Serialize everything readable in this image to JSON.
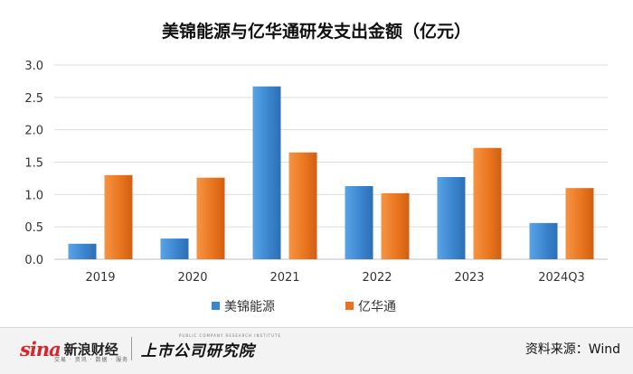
{
  "chart_data": {
    "type": "bar",
    "title": "美锦能源与亿华通研发支出金额（亿元）",
    "categories": [
      "2019",
      "2020",
      "2021",
      "2022",
      "2023",
      "2024Q3"
    ],
    "series": [
      {
        "name": "美锦能源",
        "values": [
          0.24,
          0.32,
          2.67,
          1.13,
          1.27,
          0.56
        ],
        "color": "#3b86d0"
      },
      {
        "name": "亿华通",
        "values": [
          1.3,
          1.26,
          1.65,
          1.02,
          1.72,
          1.1
        ],
        "color": "#e8721f"
      }
    ],
    "ylim": [
      0,
      3.0
    ],
    "yticks": [
      "0.0",
      "0.5",
      "1.0",
      "1.5",
      "2.0",
      "2.5",
      "3.0"
    ],
    "grid": true,
    "legend_position": "bottom-center"
  },
  "footer": {
    "sina_logo": "sina",
    "sina_name": "新浪财经",
    "sina_tagline": "交易 · 资讯 · 数据 · 服务",
    "institute_name": "上市公司研究院",
    "institute_en": "PUBLIC COMPANY RESEARCH INSTITUTE",
    "source": "资料来源：Wind"
  }
}
